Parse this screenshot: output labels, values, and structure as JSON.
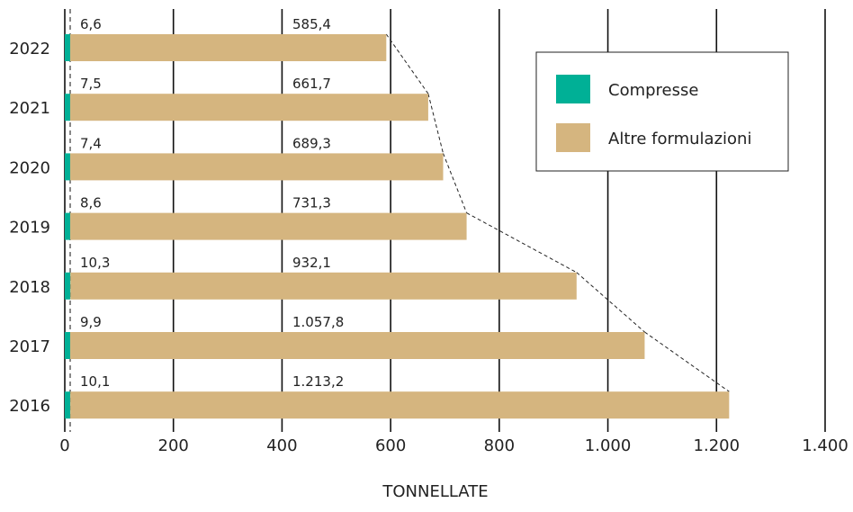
{
  "chart_data": {
    "type": "bar",
    "orientation": "horizontal",
    "stacked": true,
    "categories": [
      "2022",
      "2021",
      "2020",
      "2019",
      "2018",
      "2017",
      "2016"
    ],
    "series": [
      {
        "name": "Compresse",
        "color": "#00b096",
        "values": [
          6.6,
          7.5,
          7.4,
          8.6,
          10.3,
          9.9,
          10.1
        ],
        "labels": [
          "6,6",
          "7,5",
          "7,4",
          "8,6",
          "10,3",
          "9,9",
          "10,1"
        ]
      },
      {
        "name": "Altre formulazioni",
        "color": "#d5b57f",
        "values": [
          585.4,
          661.7,
          689.3,
          731.3,
          932.1,
          1057.8,
          1213.2
        ],
        "labels": [
          "585,4",
          "661,7",
          "689,3",
          "731,3",
          "932,1",
          "1.057,8",
          "1.213,2"
        ]
      }
    ],
    "xlabel": "TONNELLATE",
    "xlim": [
      0,
      1400
    ],
    "xticks": [
      0,
      200,
      400,
      600,
      800,
      1000,
      1200,
      1400
    ],
    "xtick_labels": [
      "0",
      "200",
      "400",
      "600",
      "800",
      "1.000",
      "1.200",
      "1.400"
    ],
    "grid": "vertical",
    "legend_position": "top-right",
    "connector_lines": "dashed"
  }
}
